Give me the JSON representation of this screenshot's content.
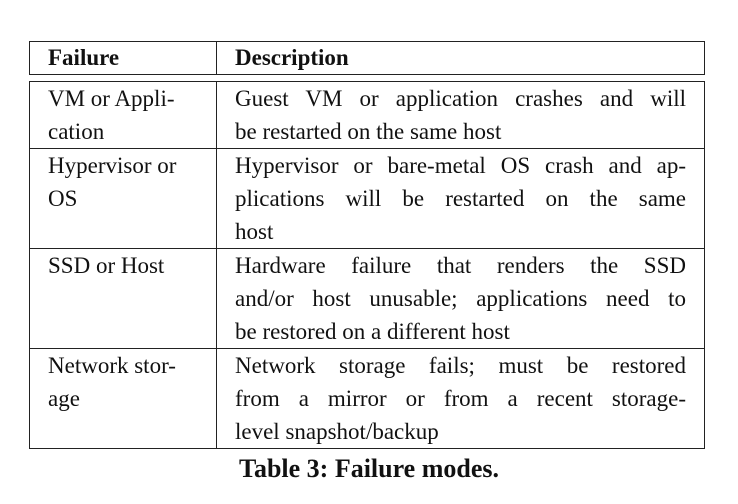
{
  "table": {
    "headers": [
      "Failure",
      "Description"
    ],
    "rows": [
      {
        "failure_lines": [
          "VM or Appli-",
          "cation"
        ],
        "description_lines": [
          "Guest VM or application crashes and will",
          "be restarted on the same host"
        ]
      },
      {
        "failure_lines": [
          "Hypervisor or",
          "OS"
        ],
        "description_lines": [
          "Hypervisor or bare-metal OS crash and ap-",
          "plications will be restarted on the same",
          "host"
        ]
      },
      {
        "failure_lines": [
          "SSD or Host"
        ],
        "description_lines": [
          "Hardware failure that renders the SSD",
          "and/or host unusable; applications need to",
          "be restored on a different host"
        ]
      },
      {
        "failure_lines": [
          "Network stor-",
          "age"
        ],
        "description_lines": [
          "Network storage fails; must be restored",
          "from a mirror or from a recent storage-",
          "level snapshot/backup"
        ]
      }
    ]
  },
  "caption": "Table 3:  Failure modes."
}
